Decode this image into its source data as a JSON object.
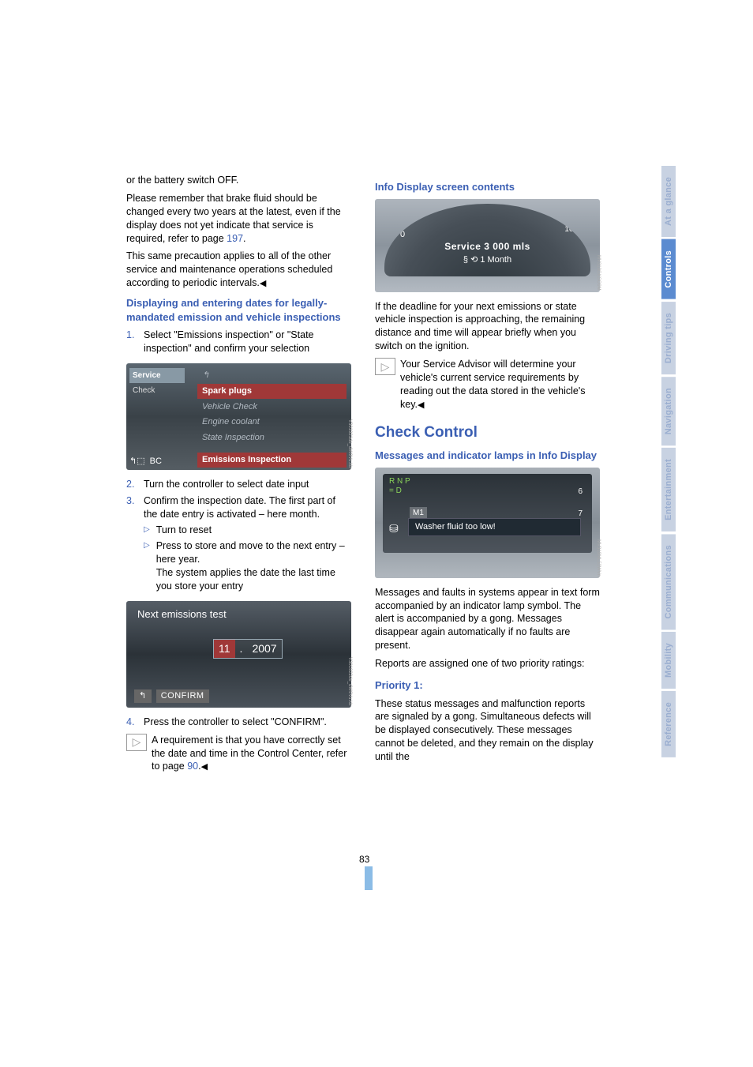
{
  "colors": {
    "link_blue": "#3b5fb3",
    "highlight_red": "#a03838",
    "panel_dark": "#3a4248",
    "tab_active": "#5b8bd0",
    "tab_inactive": "#c8d2e2",
    "text_body": "#000000",
    "background": "#ffffff"
  },
  "left": {
    "p1_a": "or the battery switch OFF.",
    "p1_b": "Please remember that brake fluid should be changed every two years at the latest, even if the display does not yet indicate that service is required, refer to page ",
    "p1_link": "197",
    "p1_c": ".",
    "p2": "This same precaution applies to all of the other service and maintenance operations scheduled according to periodic intervals.",
    "h1": "Displaying and entering dates for legally-mandated emission and vehicle inspections",
    "li1_num": "1.",
    "li1": "Select \"Emissions inspection\" or \"State inspection\" and confirm your selection",
    "li2_num": "2.",
    "li2": "Turn the controller to select date input",
    "li3_num": "3.",
    "li3": "Confirm the inspection date. The first part of the date entry is activated – here month.",
    "b1": "Turn to reset",
    "b2": "Press to store and move to the next entry – here year.",
    "b2b": "The system applies the date the last time you store your entry",
    "li4_num": "4.",
    "li4": "Press the controller to select \"CONFIRM\".",
    "note": "A requirement is that you have correctly set the date and time in the Control Center, refer to page ",
    "note_link": "90",
    "note_end": "."
  },
  "shot1": {
    "left_sel": "Service",
    "left_item": "Check",
    "back_icon": "↰",
    "items": [
      "Spark plugs",
      "Vehicle Check",
      "Engine coolant",
      "State Inspection"
    ],
    "bc": "BC",
    "highlight": "Emissions Inspection",
    "caption": "V301921de_dW9Vu.kb"
  },
  "shot2": {
    "title": "Next emissions test",
    "month": "11",
    "sep": ".",
    "year": "2007",
    "confirm": "CONFIRM",
    "back_icon": "↰",
    "caption": "V301922de_dW9Vu.kb"
  },
  "right": {
    "h1": "Info Display screen contents",
    "p1": "If the deadline for your next emissions or state vehicle inspection is approaching, the remaining distance and time will appear briefly when you switch on the ignition.",
    "note": "Your Service Advisor will determine your vehicle's current service requirements by reading out the data stored in the vehicle's key.",
    "h2": "Check Control",
    "h3": "Messages and indicator lamps in Info Display",
    "p2": "Messages and faults in systems appear in text form accompanied by an indicator lamp symbol. The alert is accompanied by a gong. Messages disappear again automatically if no faults are present.",
    "p3": "Reports are assigned one of two priority ratings:",
    "h4": "Priority 1:",
    "p4": "These status messages and malfunction reports are signaled by a gong. Simultaneous defects will be displayed consecutively. These messages cannot be deleted, and they remain on the display until the"
  },
  "shot3": {
    "zero": "0",
    "max": "160",
    "line1": "Service  3 000 mls",
    "line2": "§ ⟲  1 Month",
    "caption": "MV319GKSO9M"
  },
  "shot4": {
    "gear_top": "R N P",
    "gear_bot": "= D",
    "m1": "M1",
    "scale6": "6",
    "scale7": "7",
    "msg": "Washer fluid too low!",
    "caption": "MV319ML53WVn"
  },
  "tabs": [
    {
      "label": "At a glance",
      "bg": "#c8d2e2",
      "fg": "#9aaed0"
    },
    {
      "label": "Controls",
      "bg": "#5b8bd0",
      "fg": "#ffffff"
    },
    {
      "label": "Driving tips",
      "bg": "#c8d2e2",
      "fg": "#9aaed0"
    },
    {
      "label": "Navigation",
      "bg": "#c8d2e2",
      "fg": "#9aaed0"
    },
    {
      "label": "Entertainment",
      "bg": "#c8d2e2",
      "fg": "#9aaed0"
    },
    {
      "label": "Communications",
      "bg": "#c8d2e2",
      "fg": "#9aaed0"
    },
    {
      "label": "Mobility",
      "bg": "#c8d2e2",
      "fg": "#9aaed0"
    },
    {
      "label": "Reference",
      "bg": "#c8d2e2",
      "fg": "#9aaed0"
    }
  ],
  "page_number": "83"
}
